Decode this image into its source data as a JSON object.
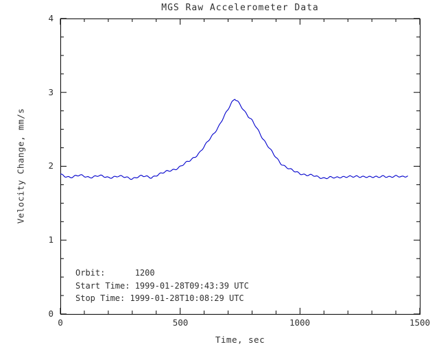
{
  "chart_data": {
    "type": "line",
    "title": "MGS Raw Accelerometer Data",
    "xlabel": "Time, sec",
    "ylabel": "Velocity Change, mm/s",
    "xlim": [
      0,
      1500
    ],
    "ylim": [
      0,
      4
    ],
    "x_ticks": [
      0,
      500,
      1000,
      1500
    ],
    "y_ticks": [
      0,
      1,
      2,
      3,
      4
    ],
    "x_minor_step": 100,
    "y_minor_step": 0.25,
    "grid": false,
    "legend": "none",
    "line_color": "#0000CC",
    "axis_color": "#000000",
    "text_color": "#303030",
    "series": [
      {
        "name": "Velocity Change",
        "x": [
          0,
          20,
          40,
          60,
          80,
          100,
          120,
          140,
          160,
          180,
          200,
          220,
          240,
          260,
          280,
          300,
          320,
          340,
          360,
          380,
          400,
          420,
          440,
          460,
          480,
          500,
          520,
          540,
          560,
          580,
          600,
          620,
          640,
          660,
          680,
          700,
          715,
          728,
          740,
          755,
          770,
          785,
          800,
          815,
          830,
          845,
          860,
          875,
          890,
          905,
          920,
          940,
          960,
          980,
          1000,
          1025,
          1050,
          1075,
          1100,
          1125,
          1150,
          1175,
          1200,
          1225,
          1250,
          1275,
          1300,
          1325,
          1350,
          1375,
          1400,
          1425,
          1450
        ],
        "y": [
          1.88,
          1.86,
          1.85,
          1.86,
          1.87,
          1.86,
          1.85,
          1.86,
          1.87,
          1.86,
          1.85,
          1.86,
          1.87,
          1.86,
          1.85,
          1.84,
          1.86,
          1.87,
          1.86,
          1.85,
          1.88,
          1.9,
          1.92,
          1.94,
          1.96,
          1.99,
          2.03,
          2.07,
          2.12,
          2.18,
          2.26,
          2.35,
          2.44,
          2.54,
          2.66,
          2.77,
          2.86,
          2.92,
          2.89,
          2.82,
          2.74,
          2.67,
          2.62,
          2.55,
          2.47,
          2.38,
          2.3,
          2.23,
          2.16,
          2.1,
          2.04,
          1.99,
          1.95,
          1.92,
          1.9,
          1.88,
          1.87,
          1.85,
          1.84,
          1.85,
          1.84,
          1.86,
          1.87,
          1.86,
          1.86,
          1.87,
          1.86,
          1.85,
          1.87,
          1.86,
          1.86,
          1.85,
          1.87
        ]
      }
    ],
    "annotations": [
      "Orbit:      1200",
      "Start Time: 1999-01-28T09:43:39 UTC",
      "Stop Time: 1999-01-28T10:08:29 UTC"
    ]
  }
}
